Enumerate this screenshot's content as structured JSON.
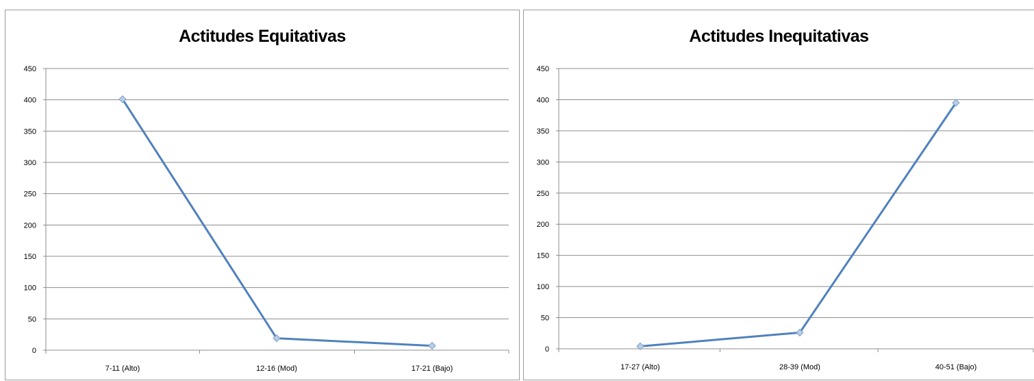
{
  "chart_data": [
    {
      "type": "line",
      "title": "Actitudes Equitativas",
      "categories": [
        "7-11 (Alto)",
        "12-16 (Mod)",
        "17-21 (Bajo)"
      ],
      "series": [
        {
          "values": [
            401,
            19,
            7
          ]
        }
      ],
      "ylim": [
        0,
        450
      ],
      "yticks": [
        0,
        50,
        100,
        150,
        200,
        250,
        300,
        350,
        400,
        450
      ],
      "grid": true,
      "legend": "none",
      "xlabel": "",
      "ylabel": ""
    },
    {
      "type": "line",
      "title": "Actitudes Inequitativas",
      "categories": [
        "17-27 (Alto)",
        "28-39 (Mod)",
        "40-51 (Bajo)"
      ],
      "series": [
        {
          "values": [
            4,
            26,
            395
          ]
        }
      ],
      "ylim": [
        0,
        450
      ],
      "yticks": [
        0,
        50,
        100,
        150,
        200,
        250,
        300,
        350,
        400,
        450
      ],
      "grid": true,
      "legend": "none",
      "xlabel": "",
      "ylabel": ""
    }
  ],
  "colors": {
    "line": "#4f81bd",
    "marker_fill": "#b9cde5",
    "marker_stroke": "#7f9fcf",
    "grid": "#8c8c8c",
    "axis": "#8c8c8c"
  }
}
